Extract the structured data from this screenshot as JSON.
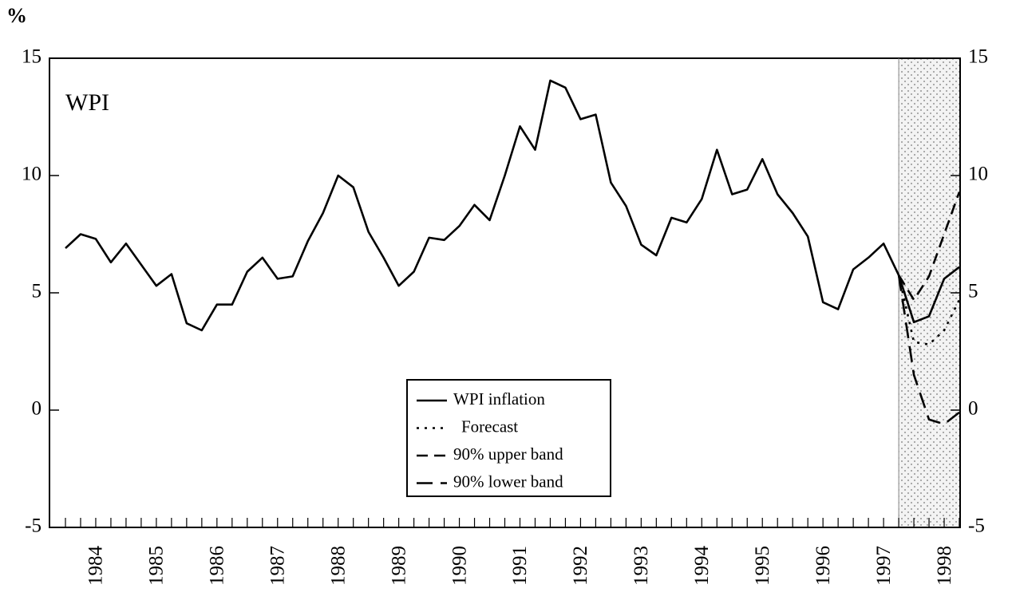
{
  "chart_data": {
    "type": "line",
    "y_label": "%",
    "annotation": "WPI",
    "categories": [
      null,
      null,
      "1984",
      null,
      null,
      null,
      "1985",
      null,
      null,
      null,
      "1986",
      null,
      null,
      null,
      "1987",
      null,
      null,
      null,
      "1988",
      null,
      null,
      null,
      "1989",
      null,
      null,
      null,
      "1990",
      null,
      null,
      null,
      "1991",
      null,
      null,
      null,
      "1992",
      null,
      null,
      null,
      "1993",
      null,
      null,
      null,
      "1994",
      null,
      null,
      null,
      "1995",
      null,
      null,
      null,
      "1996",
      null,
      null,
      null,
      "1997",
      null,
      null,
      null,
      "1998",
      null
    ],
    "series": [
      {
        "name": "WPI inflation",
        "color": "#000000",
        "dash": "solid",
        "values": [
          6.9,
          7.5,
          7.3,
          6.3,
          7.1,
          6.2,
          5.3,
          5.8,
          3.7,
          3.4,
          4.5,
          4.5,
          5.9,
          6.5,
          5.6,
          5.7,
          7.2,
          8.4,
          10.0,
          9.5,
          7.6,
          6.5,
          5.3,
          5.9,
          7.35,
          7.25,
          7.85,
          8.75,
          8.1,
          10.0,
          12.1,
          11.1,
          14.05,
          13.75,
          12.4,
          12.6,
          9.7,
          8.7,
          7.05,
          6.6,
          8.2,
          8.0,
          9.0,
          11.1,
          9.2,
          9.4,
          10.7,
          9.2,
          8.4,
          7.4,
          4.6,
          4.3,
          6.0,
          6.5,
          7.1,
          5.75,
          3.75,
          4.0,
          5.6,
          6.1
        ]
      },
      {
        "name": "Forecast",
        "color": "#000000",
        "dash": "dotted",
        "values": [
          null,
          null,
          null,
          null,
          null,
          null,
          null,
          null,
          null,
          null,
          null,
          null,
          null,
          null,
          null,
          null,
          null,
          null,
          null,
          null,
          null,
          null,
          null,
          null,
          null,
          null,
          null,
          null,
          null,
          null,
          null,
          null,
          null,
          null,
          null,
          null,
          null,
          null,
          null,
          null,
          null,
          null,
          null,
          null,
          null,
          null,
          null,
          null,
          null,
          null,
          null,
          null,
          null,
          null,
          null,
          5.75,
          2.9,
          2.8,
          3.4,
          4.7
        ]
      },
      {
        "name": "90% upper band",
        "color": "#000000",
        "dash": "dashed",
        "values": [
          null,
          null,
          null,
          null,
          null,
          null,
          null,
          null,
          null,
          null,
          null,
          null,
          null,
          null,
          null,
          null,
          null,
          null,
          null,
          null,
          null,
          null,
          null,
          null,
          null,
          null,
          null,
          null,
          null,
          null,
          null,
          null,
          null,
          null,
          null,
          null,
          null,
          null,
          null,
          null,
          null,
          null,
          null,
          null,
          null,
          null,
          null,
          null,
          null,
          null,
          null,
          null,
          null,
          null,
          null,
          5.75,
          4.7,
          5.7,
          7.5,
          9.3
        ]
      },
      {
        "name": "90% lower band",
        "color": "#000000",
        "dash": "longdash",
        "values": [
          null,
          null,
          null,
          null,
          null,
          null,
          null,
          null,
          null,
          null,
          null,
          null,
          null,
          null,
          null,
          null,
          null,
          null,
          null,
          null,
          null,
          null,
          null,
          null,
          null,
          null,
          null,
          null,
          null,
          null,
          null,
          null,
          null,
          null,
          null,
          null,
          null,
          null,
          null,
          null,
          null,
          null,
          null,
          null,
          null,
          null,
          null,
          null,
          null,
          null,
          null,
          null,
          null,
          null,
          null,
          5.75,
          1.5,
          -0.4,
          -0.6,
          -0.1
        ]
      }
    ],
    "ylim": [
      -5,
      15
    ],
    "yticks": [
      -5,
      0,
      5,
      10,
      15
    ],
    "y2lim": [
      -5,
      15
    ],
    "y2ticks": [
      -5,
      0,
      5,
      10,
      15
    ],
    "grid": false,
    "legend": "bottom-center"
  }
}
